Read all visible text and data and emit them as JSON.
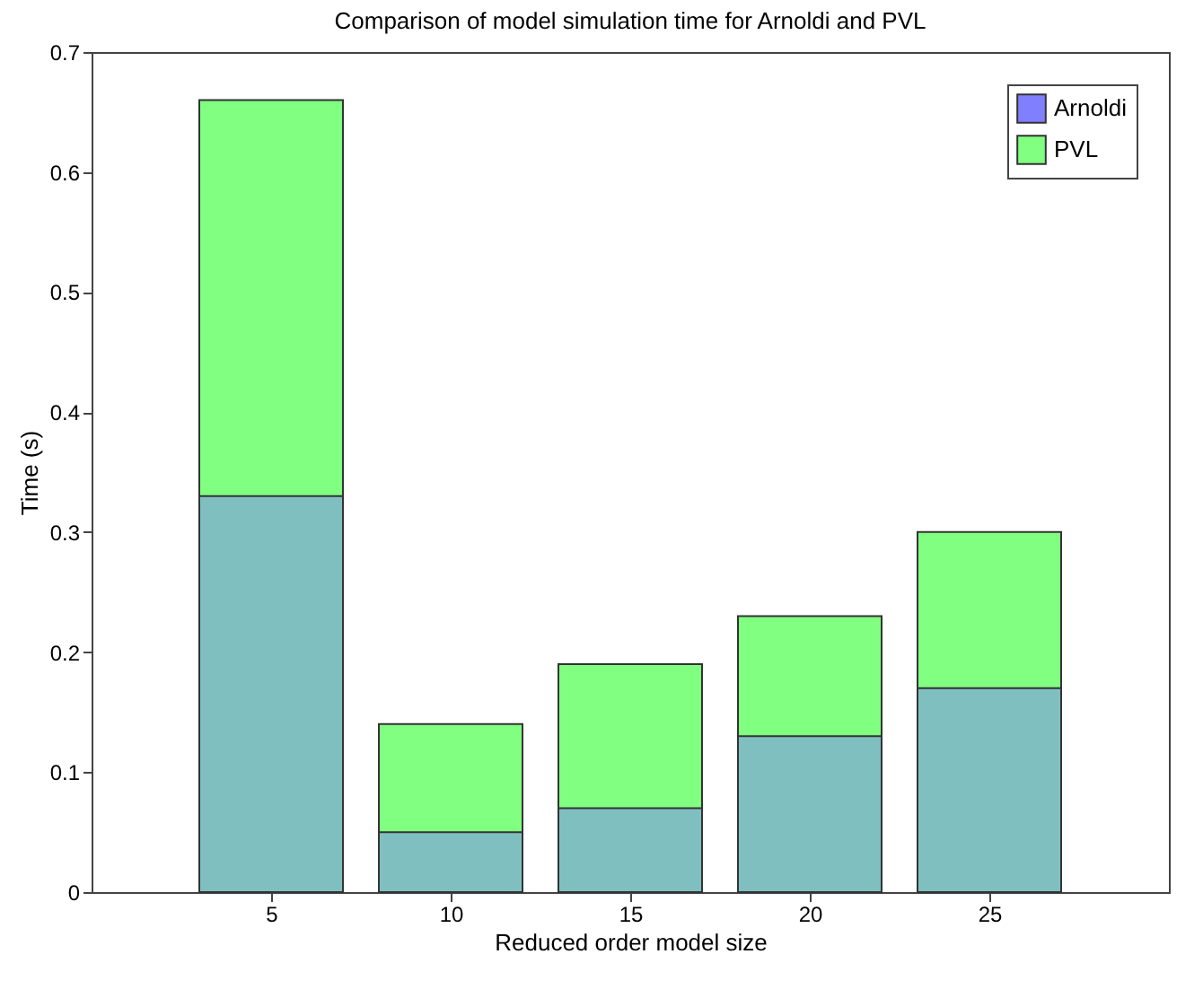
{
  "chart_data": {
    "type": "bar",
    "title": "Comparison of model simulation time for Arnoldi and PVL",
    "xlabel": "Reduced order model size",
    "ylabel": "Time (s)",
    "x": [
      5,
      10,
      15,
      20,
      25
    ],
    "series": [
      {
        "name": "Arnoldi",
        "color": "#8080ff",
        "values": [
          0.33,
          0.05,
          0.07,
          0.13,
          0.17
        ]
      },
      {
        "name": "PVL",
        "color": "#80ff80",
        "values": [
          0.66,
          0.14,
          0.19,
          0.23,
          0.3
        ]
      }
    ],
    "xlim": [
      0,
      30
    ],
    "xticks": [
      5,
      10,
      15,
      20,
      25
    ],
    "ylim": [
      0,
      0.7
    ],
    "yticks": [
      0,
      0.1,
      0.2,
      0.3,
      0.4,
      0.5,
      0.6,
      0.7
    ],
    "grid": false,
    "legend": "top right"
  }
}
